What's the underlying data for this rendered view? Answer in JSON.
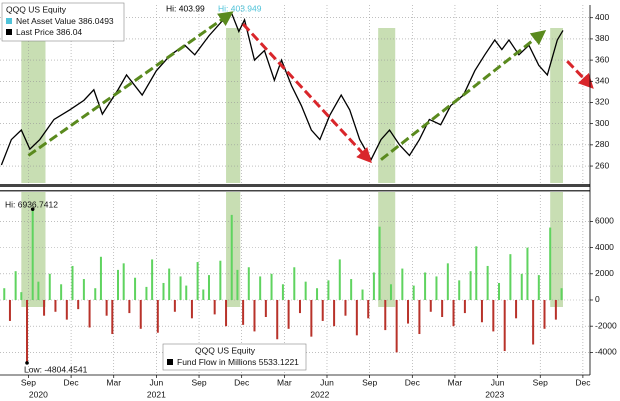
{
  "chart_data": [
    {
      "type": "line",
      "legend": {
        "title": "QQQ US Equity",
        "entries": [
          {
            "label": "Net Asset Value 386.0493",
            "color": "#4fc3d9"
          },
          {
            "label": "Last Price 386.04",
            "color": "#000000"
          }
        ]
      },
      "annotations": [
        {
          "text": "Hi: 403.99",
          "color": "#000000"
        },
        {
          "text": "Hi: 403.949",
          "color": "#4fc3d9"
        }
      ],
      "xlim": [
        -2,
        39.5
      ],
      "ylim": [
        244,
        412
      ],
      "yticks": [
        260,
        280,
        300,
        320,
        340,
        360,
        380,
        400
      ],
      "grid": true,
      "series": [
        {
          "color": "#000000",
          "x": [
            -1.9,
            -1.2,
            -0.5,
            0.1,
            0.8,
            1.8,
            2.9,
            3.9,
            4.6,
            5.2,
            6.3,
            6.9,
            8.0,
            9.0,
            10.0,
            11.0,
            11.7,
            12.7,
            13.7,
            14.3,
            14.8,
            15.2,
            15.9,
            16.6,
            17.3,
            17.8,
            18.5,
            19.2,
            19.9,
            20.5,
            21.2,
            22.0,
            22.6,
            23.3,
            24.1,
            24.8,
            25.4,
            26.1,
            26.8,
            27.5,
            28.2,
            29.0,
            29.7,
            30.6,
            31.4,
            32.1,
            32.8,
            33.3,
            33.8,
            34.5,
            35.2,
            35.9,
            36.5,
            37.2,
            37.6
          ],
          "values": [
            261,
            285,
            294,
            276,
            285,
            304,
            313,
            322,
            332,
            309,
            332,
            346,
            327,
            350,
            365,
            374,
            365,
            383,
            398,
            404,
            387,
            398,
            360,
            369,
            341,
            360,
            336,
            317,
            294,
            285,
            308,
            327,
            313,
            285,
            266,
            285,
            294,
            280,
            270,
            285,
            304,
            299,
            317,
            327,
            350,
            365,
            379,
            370,
            379,
            365,
            374,
            355,
            346,
            379,
            388
          ]
        }
      ],
      "highlight_spans": [
        [
          -0.5,
          1.2
        ],
        [
          13.9,
          14.9
        ],
        [
          24.6,
          25.8
        ],
        [
          36.7,
          37.6
        ]
      ],
      "highlight_color": "#b5d39a",
      "trend_arrows": [
        {
          "from": [
            0,
            270
          ],
          "to": [
            14,
            402
          ],
          "color": "#5a8a1e"
        },
        {
          "from": [
            15.1,
            394
          ],
          "to": [
            23.8,
            268
          ],
          "color": "#d9262b"
        },
        {
          "from": [
            24.8,
            266
          ],
          "to": [
            36,
            384
          ],
          "color": "#5a8a1e"
        },
        {
          "from": [
            37.9,
            359
          ],
          "to": [
            39.4,
            338
          ],
          "color": "#d9262b"
        }
      ]
    },
    {
      "type": "bar",
      "legend": {
        "title": "QQQ US Equity",
        "entries": [
          {
            "label": "Fund Flow in Millions 5533.1221",
            "color": "#000000"
          }
        ]
      },
      "annotations": [
        {
          "text": "Hi: 6936.7412"
        },
        {
          "text": "Low: -4804.4541"
        }
      ],
      "xlim": [
        -2,
        39.5
      ],
      "ylim": [
        -5730,
        8020
      ],
      "yticks": [
        -4000,
        -2000,
        0,
        2000,
        4000,
        6000
      ],
      "grid": true,
      "positive_color": "#5fd35f",
      "negative_color": "#b8322a",
      "xticks": [
        {
          "value": 0,
          "label": "Sep"
        },
        {
          "value": 3,
          "label": "Dec"
        },
        {
          "value": 6,
          "label": "Mar"
        },
        {
          "value": 9,
          "label": "Jun"
        },
        {
          "value": 12,
          "label": "Sep"
        },
        {
          "value": 15,
          "label": "Dec"
        },
        {
          "value": 18,
          "label": "Mar"
        },
        {
          "value": 21,
          "label": "Jun"
        },
        {
          "value": 24,
          "label": "Sep"
        },
        {
          "value": 27,
          "label": "Dec"
        },
        {
          "value": 30,
          "label": "Mar"
        },
        {
          "value": 33,
          "label": "Jun"
        },
        {
          "value": 36,
          "label": "Sep"
        },
        {
          "value": 39,
          "label": "Dec"
        }
      ],
      "year_labels": [
        {
          "value": 0.7,
          "label": "2020"
        },
        {
          "value": 9,
          "label": "2021"
        },
        {
          "value": 20.5,
          "label": "2022"
        },
        {
          "value": 32.8,
          "label": "2023"
        }
      ],
      "x": [
        -1.7,
        -1.3,
        -0.9,
        -0.5,
        -0.1,
        0.3,
        0.7,
        1.1,
        1.5,
        1.9,
        2.3,
        2.7,
        3.1,
        3.5,
        3.9,
        4.3,
        4.7,
        5.1,
        5.5,
        5.9,
        6.3,
        6.7,
        7.1,
        7.5,
        7.9,
        8.3,
        8.7,
        9.1,
        9.5,
        9.9,
        10.3,
        10.7,
        11.1,
        11.5,
        11.9,
        12.3,
        12.7,
        13.1,
        13.5,
        13.9,
        14.3,
        14.7,
        15.1,
        15.5,
        15.9,
        16.3,
        16.7,
        17.1,
        17.5,
        17.9,
        18.3,
        18.7,
        19.1,
        19.5,
        19.9,
        20.3,
        20.7,
        21.1,
        21.5,
        21.9,
        22.3,
        22.7,
        23.1,
        23.5,
        23.9,
        24.3,
        24.7,
        25.1,
        25.5,
        25.9,
        26.3,
        26.7,
        27.1,
        27.5,
        27.9,
        28.3,
        28.7,
        29.1,
        29.5,
        29.9,
        30.3,
        30.7,
        31.1,
        31.5,
        31.9,
        32.3,
        32.7,
        33.1,
        33.5,
        33.9,
        34.3,
        34.7,
        35.1,
        35.5,
        35.9,
        36.3,
        36.7,
        37.1,
        37.5
      ],
      "values": [
        900,
        -1600,
        2200,
        600,
        -4804.4541,
        6936.7412,
        1400,
        -1200,
        2000,
        -900,
        1200,
        -1500,
        2600,
        -700,
        1600,
        -2100,
        900,
        3300,
        -1200,
        -2600,
        2300,
        2800,
        -1000,
        1700,
        -2200,
        1000,
        3100,
        -2500,
        1300,
        2400,
        -900,
        1800,
        1100,
        -1400,
        2900,
        800,
        1900,
        -1100,
        3000,
        -2000,
        6500,
        2300,
        -1900,
        2500,
        -2400,
        1800,
        -1300,
        2000,
        -3000,
        1200,
        -2200,
        2500,
        -1000,
        1400,
        -2800,
        900,
        -1600,
        1500,
        -2000,
        3100,
        -1200,
        1600,
        -2700,
        800,
        -1400,
        2100,
        5600,
        -2300,
        1200,
        -4000,
        2400,
        -1800,
        1100,
        -2600,
        2100,
        -900,
        1800,
        -1300,
        2800,
        -2000,
        1500,
        -1000,
        2200,
        4100,
        -1700,
        2600,
        -2400,
        1300,
        -3900,
        3500,
        -1400,
        2000,
        4000,
        -3400,
        1900,
        -2200,
        5533.1221,
        -1500,
        900
      ]
    }
  ]
}
